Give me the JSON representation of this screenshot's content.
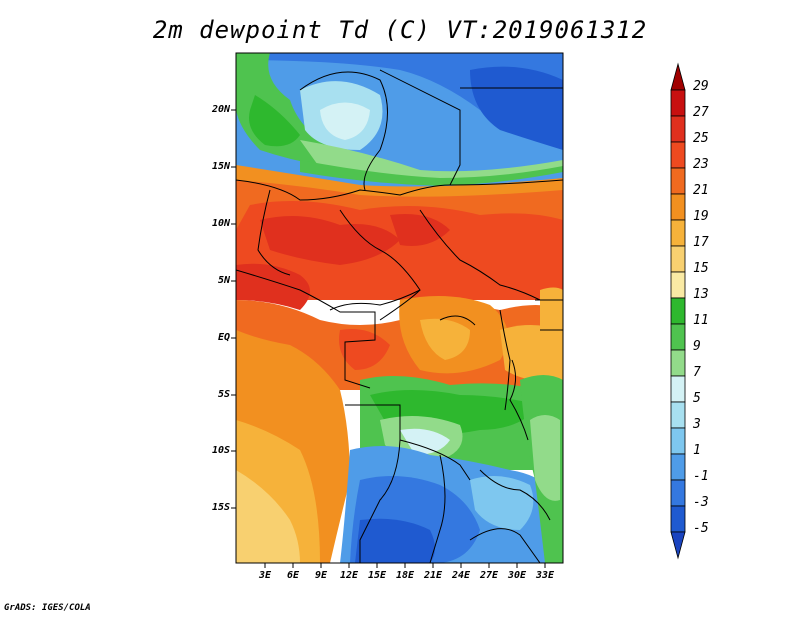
{
  "title": "2m dewpoint Td (C) VT:2019061312",
  "credit": "GrADS: IGES/COLA",
  "lat_labels": [
    "20N",
    "15N",
    "10N",
    "5N",
    "EQ",
    "5S",
    "10S",
    "15S"
  ],
  "lon_labels": [
    "3E",
    "6E",
    "9E",
    "12E",
    "15E",
    "18E",
    "21E",
    "24E",
    "27E",
    "30E",
    "33E"
  ],
  "colorbar": {
    "labels": [
      "29",
      "27",
      "25",
      "23",
      "21",
      "19",
      "17",
      "15",
      "13",
      "11",
      "9",
      "7",
      "5",
      "3",
      "1",
      "-1",
      "-3",
      "-5"
    ],
    "colors": [
      "#a00000",
      "#c81010",
      "#e0301e",
      "#ee4a20",
      "#f06a20",
      "#f29020",
      "#f6b23a",
      "#f8d070",
      "#faeaa4",
      "#2eb82e",
      "#4fc34f",
      "#92db8a",
      "#d4f2f5",
      "#a8e0f0",
      "#7ec7ef",
      "#4f9ce8",
      "#3478e0",
      "#1f5ad0",
      "#1a44c0"
    ]
  }
}
